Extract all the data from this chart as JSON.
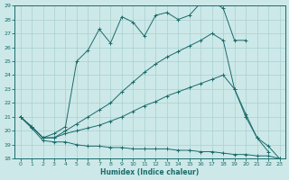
{
  "xlabel": "Humidex (Indice chaleur)",
  "bg_color": "#cde8e8",
  "grid_color": "#a8d0d0",
  "line_color": "#1a6b6b",
  "xlim": [
    -0.5,
    23.5
  ],
  "ylim": [
    18,
    29
  ],
  "xticks": [
    0,
    1,
    2,
    3,
    4,
    5,
    6,
    7,
    8,
    9,
    10,
    11,
    12,
    13,
    14,
    15,
    16,
    17,
    18,
    19,
    20,
    21,
    22,
    23
  ],
  "yticks": [
    18,
    19,
    20,
    21,
    22,
    23,
    24,
    25,
    26,
    27,
    28,
    29
  ],
  "line1_x": [
    0,
    1,
    2,
    3,
    4,
    5,
    6,
    7,
    8,
    9,
    10,
    11,
    12,
    13,
    14,
    15,
    16,
    17,
    18,
    19,
    20,
    21,
    22,
    23
  ],
  "line1_y": [
    21.0,
    20.2,
    19.3,
    19.2,
    19.2,
    19.0,
    18.9,
    18.9,
    18.8,
    18.8,
    18.7,
    18.7,
    18.7,
    18.7,
    18.6,
    18.6,
    18.5,
    18.5,
    18.4,
    18.3,
    18.3,
    18.2,
    18.2,
    18.0
  ],
  "line2_x": [
    0,
    1,
    2,
    3,
    4,
    5,
    6,
    7,
    8,
    9,
    10,
    11,
    12,
    13,
    14,
    15,
    16,
    17,
    18,
    19,
    20,
    21,
    22,
    23
  ],
  "line2_y": [
    21.0,
    20.3,
    19.5,
    19.5,
    19.8,
    20.0,
    20.2,
    20.4,
    20.7,
    21.0,
    21.4,
    21.8,
    22.1,
    22.5,
    22.8,
    23.1,
    23.4,
    23.7,
    24.0,
    23.0,
    21.2,
    19.5,
    18.9,
    18.0
  ],
  "line3_x": [
    0,
    1,
    2,
    3,
    4,
    5,
    6,
    7,
    8,
    9,
    10,
    11,
    12,
    13,
    14,
    15,
    16,
    17,
    18,
    19,
    20,
    21,
    22
  ],
  "line3_y": [
    21.0,
    20.3,
    19.5,
    19.5,
    20.0,
    20.5,
    21.0,
    21.5,
    22.0,
    22.8,
    23.5,
    24.2,
    24.8,
    25.3,
    25.7,
    26.1,
    26.5,
    27.0,
    26.5,
    23.0,
    21.0,
    19.5,
    18.5
  ],
  "line4_x": [
    0,
    1,
    2,
    3,
    4,
    5,
    6,
    7,
    8,
    9,
    10,
    11,
    12,
    13,
    14,
    15,
    16,
    17,
    18,
    19,
    20
  ],
  "line4_y": [
    21.0,
    20.3,
    19.5,
    19.8,
    20.3,
    25.0,
    25.8,
    27.3,
    26.3,
    28.2,
    27.8,
    26.8,
    28.3,
    28.5,
    28.0,
    28.3,
    29.2,
    29.3,
    28.8,
    26.5,
    26.5
  ]
}
